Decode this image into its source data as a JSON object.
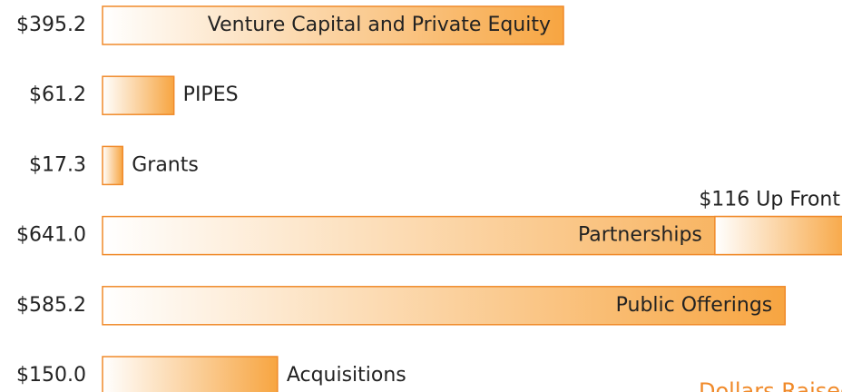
{
  "chart_data": {
    "type": "bar",
    "orientation": "horizontal",
    "categories": [
      "Venture Capital and Private Equity",
      "PIPES",
      "Grants",
      "Partnerships",
      "Public Offerings",
      "Acquisitions"
    ],
    "values": [
      395.2,
      61.2,
      17.3,
      641.0,
      585.2,
      150.0
    ],
    "value_labels": [
      "$395.2",
      "$61.2",
      "$17.3",
      "$641.0",
      "$585.2",
      "$150.0"
    ],
    "up_front": {
      "index": 3,
      "value": 116,
      "label": "$116 Up Front"
    },
    "xlim": [
      0,
      634
    ],
    "color": "#f7a541",
    "edge_color": "#f08a2a",
    "footer": "Dollars Raised"
  }
}
